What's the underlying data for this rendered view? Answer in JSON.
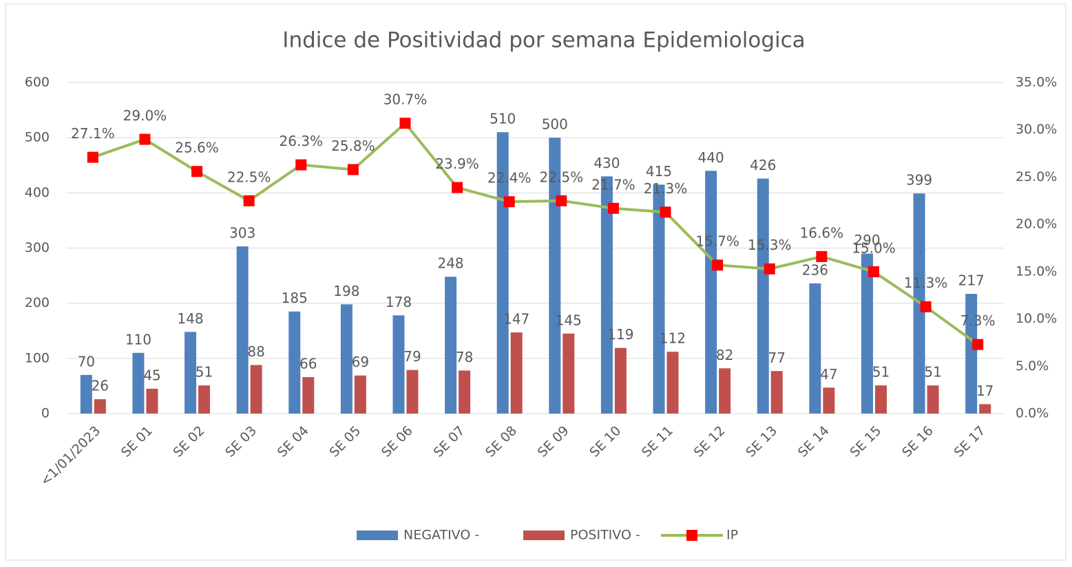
{
  "chart_data": {
    "type": "bar",
    "title": "Indice de Positividad por semana Epidemiologica",
    "categories": [
      "<1/01/2023",
      "SE 01",
      "SE 02",
      "SE 03",
      "SE 04",
      "SE 05",
      "SE 06",
      "SE 07",
      "SE 08",
      "SE 09",
      "SE 10",
      "SE 11",
      "SE 12",
      "SE 13",
      "SE 14",
      "SE 15",
      "SE 16",
      "SE 17"
    ],
    "series": [
      {
        "name": "NEGATIVO -",
        "type": "bar",
        "color": "#4f81bd",
        "values": [
          70,
          110,
          148,
          303,
          185,
          198,
          178,
          248,
          510,
          500,
          430,
          415,
          440,
          426,
          236,
          290,
          399,
          217
        ]
      },
      {
        "name": "POSITIVO -",
        "type": "bar",
        "color": "#c0504d",
        "values": [
          26,
          45,
          51,
          88,
          66,
          69,
          79,
          78,
          147,
          145,
          119,
          112,
          82,
          77,
          47,
          51,
          51,
          17
        ]
      },
      {
        "name": "IP",
        "type": "line",
        "axis": "y2",
        "color": "#9bbb59",
        "marker_color": "#ff0000",
        "values": [
          27.1,
          29.0,
          25.6,
          22.5,
          26.3,
          25.8,
          30.7,
          23.9,
          22.4,
          22.5,
          21.7,
          21.3,
          15.7,
          15.3,
          16.6,
          15.0,
          11.3,
          7.3
        ],
        "value_labels": [
          "27.1%",
          "29.0%",
          "25.6%",
          "22.5%",
          "26.3%",
          "25.8%",
          "30.7%",
          "23.9%",
          "22.4%",
          "22.5%",
          "21.7%",
          "21.3%",
          "15.7%",
          "15.3%",
          "16.6%",
          "15.0%",
          "11.3%",
          "7.3%"
        ]
      }
    ],
    "ylim": [
      0,
      600
    ],
    "yticks": [
      0,
      100,
      200,
      300,
      400,
      500,
      600
    ],
    "y2lim": [
      0,
      35
    ],
    "y2ticks": [
      {
        "value": 0,
        "label": "0.0%"
      },
      {
        "value": 5,
        "label": "5.0%"
      },
      {
        "value": 10,
        "label": "10.0%"
      },
      {
        "value": 15,
        "label": "15.0%"
      },
      {
        "value": 20,
        "label": "20.0%"
      },
      {
        "value": 25,
        "label": "25.0%"
      },
      {
        "value": 30,
        "label": "30.0%"
      },
      {
        "value": 35,
        "label": "35.0%"
      }
    ],
    "grid": true,
    "legend": "bottom"
  }
}
